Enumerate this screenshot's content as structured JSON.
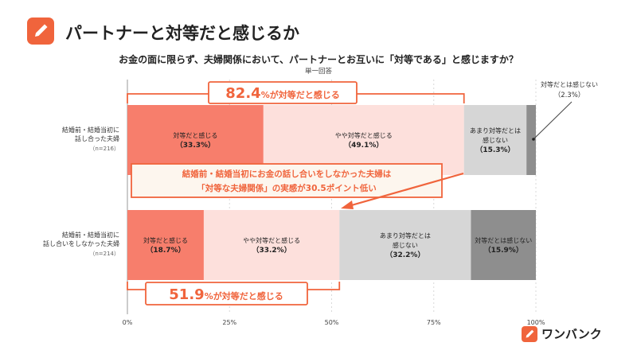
{
  "header": {
    "title": "パートナーと対等だと感じるか",
    "question": "お金の面に限らず、夫婦関係において、パートナーとお互いに「対等である」と感じますか？",
    "answer_type": "単一回答"
  },
  "colors": {
    "accent": "#f0643c",
    "series": [
      "#f77e6c",
      "#fde0dc",
      "#d6d6d6",
      "#8e8e8e"
    ],
    "callout_border": "#f0643c",
    "callout_bg": "#fdf6ee"
  },
  "icons": {
    "logo": "pencil-icon",
    "arrow": "arrow-icon"
  },
  "chart_data": {
    "type": "bar",
    "orientation": "horizontal",
    "stacked": true,
    "categories": [
      {
        "lines": [
          "結婚前・結婚当初に",
          "話し合った夫婦"
        ],
        "n": "（n=216）"
      },
      {
        "lines": [
          "結婚前・結婚当初に",
          "話し合いをしなかった夫婦"
        ],
        "n": "（n=214）"
      }
    ],
    "series": [
      {
        "name": "対等だと感じる",
        "values": [
          33.3,
          18.7
        ],
        "value_labels": [
          "（33.3%）",
          "（18.7%）"
        ]
      },
      {
        "name": "やや対等だと感じる",
        "values": [
          49.1,
          33.2
        ],
        "value_labels": [
          "（49.1%）",
          "（33.2%）"
        ]
      },
      {
        "name": "あまり対等だとは感じない",
        "values": [
          15.3,
          32.2
        ],
        "value_labels": [
          "（15.3%）",
          "（32.2%）"
        ]
      },
      {
        "name": "対等だとは感じない",
        "values": [
          2.3,
          15.9
        ],
        "value_labels": [
          "（2.3%）",
          "（15.9%）"
        ]
      }
    ],
    "segment_labels": [
      [
        [
          "対等だと感じる"
        ],
        [
          "やや対等だと感じる"
        ],
        [
          "あまり対等だとは",
          "感じない"
        ],
        []
      ],
      [
        [
          "対等だと感じる"
        ],
        [
          "やや対等だと感じる"
        ],
        [
          "あまり対等だとは",
          "感じない"
        ],
        [
          "対等だとは感じない"
        ]
      ]
    ],
    "outside_label": {
      "bar": 0,
      "series": 3,
      "lines": [
        "対等だとは感じない",
        "（2.3%）"
      ]
    },
    "x_ticks": [
      "0%",
      "25%",
      "50%",
      "75%",
      "100%"
    ],
    "xlim": [
      0,
      100
    ],
    "grid": true,
    "annotations": {
      "top_total": {
        "value": "82.4",
        "suffix": "%が対等だと感じる"
      },
      "bottom_total": {
        "value": "51.9",
        "suffix": "%が対等だと感じる"
      },
      "middle_note": [
        "結婚前・結婚当初にお金の話し合いをしなかった夫婦は",
        "「対等な夫婦関係」の実感が30.5ポイント低い"
      ]
    }
  },
  "brand": {
    "name": "ワンバンク"
  }
}
